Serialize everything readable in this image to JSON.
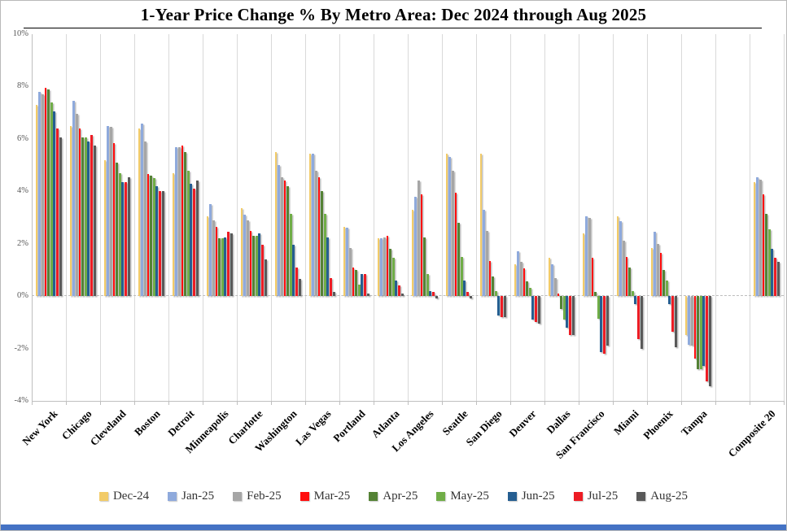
{
  "page": {
    "bottom_bar_color": "#4472C4"
  },
  "chart_data": {
    "type": "bar",
    "title": "1-Year Price Change % By Metro Area: Dec 2024 through Aug 2025",
    "y_unit": "%",
    "ylim": [
      -4,
      10
    ],
    "yticks": [
      10,
      8,
      6,
      4,
      2,
      0,
      -2,
      -4
    ],
    "grid": "vertical-category-separators",
    "zero_line": "dashed",
    "legend_position": "bottom",
    "categories": [
      "New York",
      "Chicago",
      "Cleveland",
      "Boston",
      "Detroit",
      "Minneapolis",
      "Charlotte",
      "Washington",
      "Las Vegas",
      "Portland",
      "Atlanta",
      "Los Angeles",
      "Seattle",
      "San Diego",
      "Denver",
      "Dallas",
      "San Francisco",
      "Miami",
      "Phoenix",
      "Tampa",
      "Composite 20"
    ],
    "series": [
      {
        "name": "Dec-24",
        "color": "#F2CB68",
        "values": [
          7.3,
          6.5,
          5.2,
          6.4,
          4.7,
          3.05,
          3.35,
          5.5,
          5.45,
          2.65,
          2.2,
          3.3,
          5.45,
          5.45,
          1.2,
          1.45,
          2.4,
          3.05,
          1.85,
          -1.5,
          4.35
        ]
      },
      {
        "name": "Jan-25",
        "color": "#8FAADC",
        "values": [
          7.8,
          7.45,
          6.5,
          6.6,
          5.7,
          3.5,
          3.1,
          5.0,
          5.45,
          2.6,
          2.2,
          3.8,
          5.3,
          3.3,
          1.7,
          1.2,
          3.05,
          2.85,
          2.45,
          -1.85,
          4.55
        ]
      },
      {
        "name": "Feb-25",
        "color": "#A6A6A6",
        "values": [
          7.7,
          6.95,
          6.45,
          5.9,
          5.7,
          2.9,
          2.9,
          4.55,
          4.8,
          1.85,
          2.25,
          4.4,
          4.8,
          2.5,
          1.3,
          0.7,
          3.0,
          2.1,
          2.0,
          -1.9,
          4.45
        ]
      },
      {
        "name": "Mar-25",
        "color": "#FF0D0D",
        "values": [
          7.95,
          6.4,
          5.85,
          4.65,
          5.75,
          2.65,
          2.5,
          4.4,
          4.55,
          1.1,
          2.3,
          3.9,
          3.95,
          1.35,
          1.05,
          0.1,
          1.45,
          1.5,
          1.65,
          -2.4,
          3.9
        ]
      },
      {
        "name": "Apr-25",
        "color": "#548235",
        "values": [
          7.9,
          6.05,
          5.1,
          4.6,
          5.5,
          2.2,
          2.3,
          4.2,
          4.0,
          1.0,
          1.8,
          2.25,
          2.8,
          0.75,
          0.55,
          -0.5,
          0.15,
          1.1,
          1.0,
          -2.8,
          3.15
        ]
      },
      {
        "name": "May-25",
        "color": "#70AD47",
        "values": [
          7.4,
          6.05,
          4.7,
          4.5,
          4.8,
          2.2,
          2.3,
          3.15,
          3.15,
          0.45,
          1.45,
          0.85,
          1.5,
          0.2,
          0.3,
          -0.9,
          -0.85,
          0.2,
          0.6,
          -2.8,
          2.55
        ]
      },
      {
        "name": "Jun-25",
        "color": "#255E91",
        "values": [
          7.05,
          5.9,
          4.35,
          4.2,
          4.3,
          2.25,
          2.4,
          1.95,
          2.25,
          0.85,
          0.6,
          0.2,
          0.6,
          -0.75,
          -0.9,
          -1.2,
          -2.15,
          -0.3,
          -0.3,
          -2.65,
          1.8
        ]
      },
      {
        "name": "Jul-25",
        "color": "#ED1C24",
        "values": [
          6.4,
          6.15,
          4.35,
          4.0,
          4.1,
          2.45,
          1.95,
          1.1,
          0.7,
          0.85,
          0.4,
          0.15,
          0.15,
          -0.8,
          -1.0,
          -1.5,
          -2.2,
          -1.65,
          -1.35,
          -3.25,
          1.45
        ]
      },
      {
        "name": "Aug-25",
        "color": "#595959",
        "values": [
          6.05,
          5.75,
          4.55,
          4.0,
          4.4,
          2.4,
          1.4,
          0.65,
          0.15,
          0.1,
          0.1,
          -0.1,
          -0.1,
          -0.8,
          -1.05,
          -1.5,
          -1.9,
          -2.0,
          -1.95,
          -3.45,
          1.3
        ]
      }
    ]
  }
}
